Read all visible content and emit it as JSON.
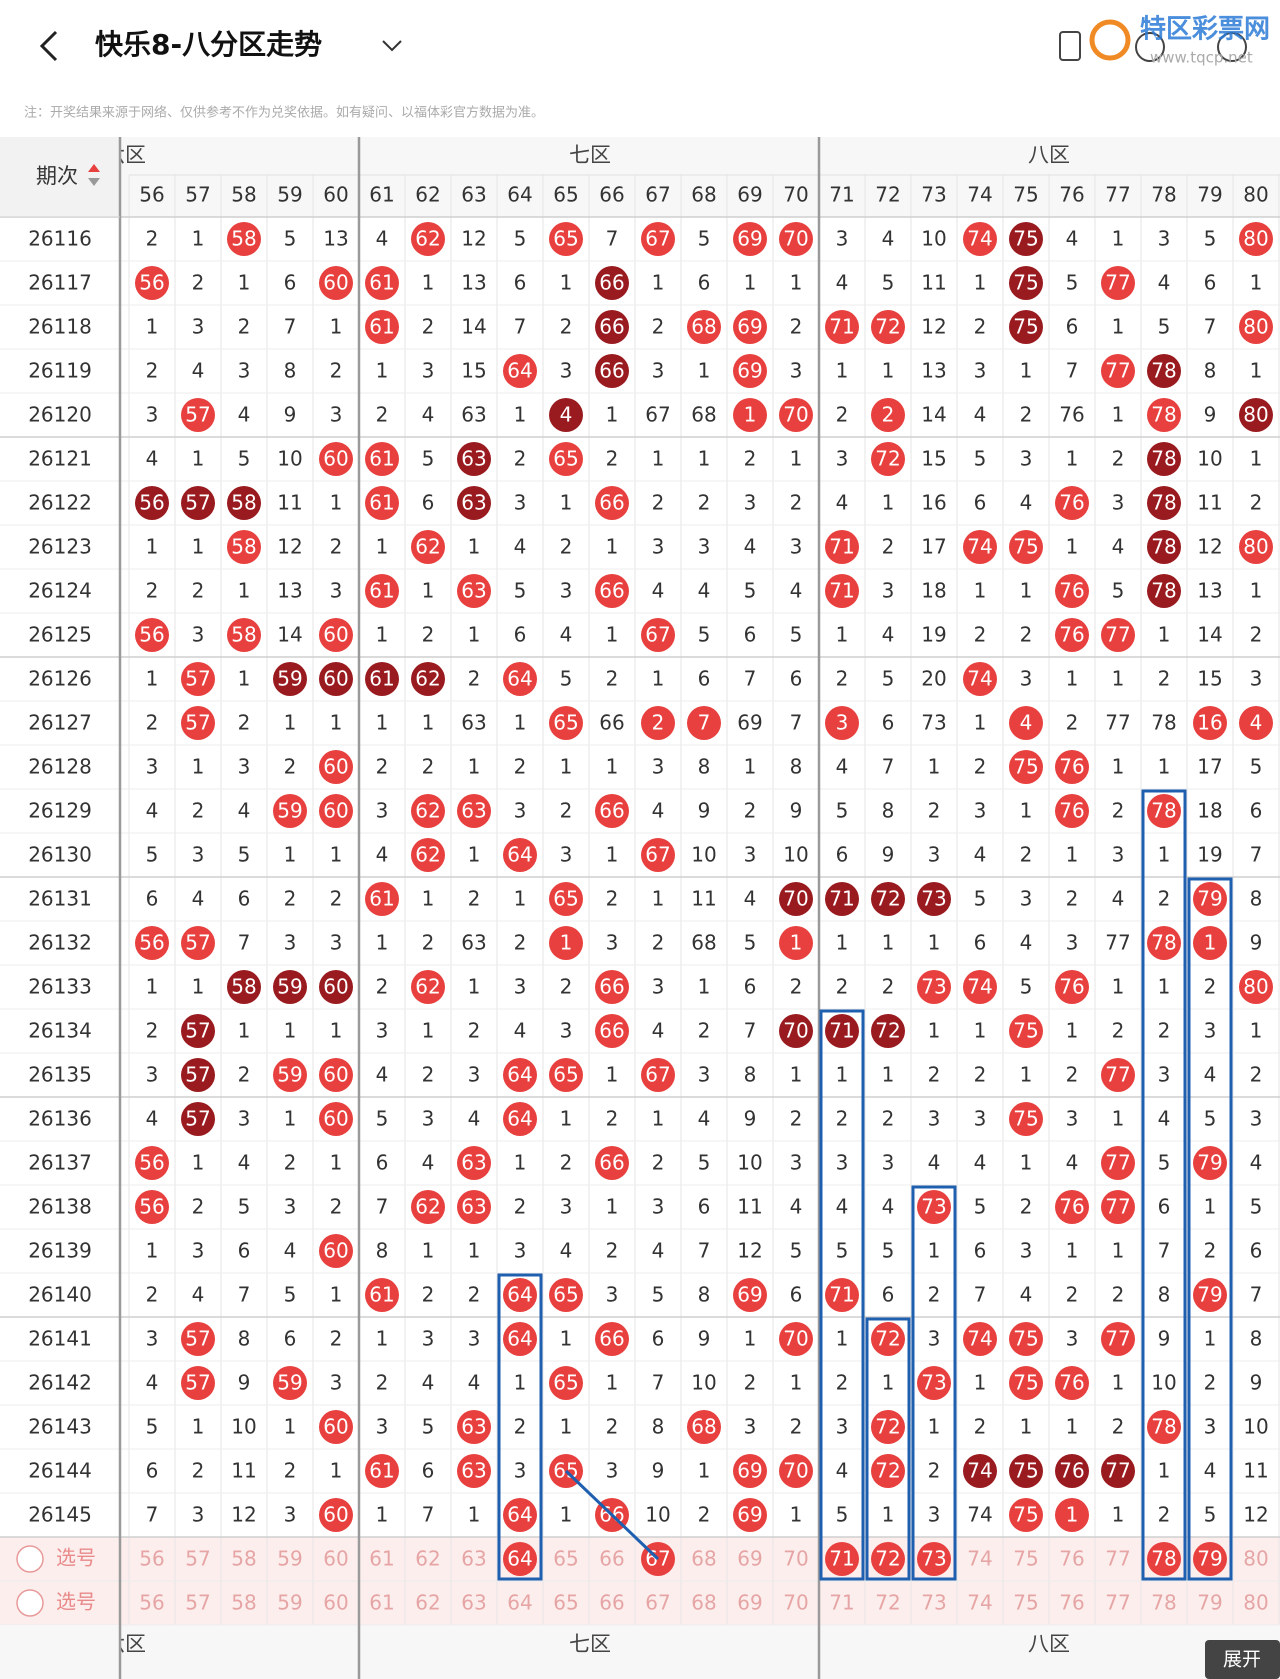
{
  "header": {
    "title": "快乐8-八分区走势",
    "watermark": "特区彩票网",
    "watermark_url": "www.tqcp.net"
  },
  "note": "注：开奖结果来源于网络、仅供参考不作为兑奖依据。如有疑问、以福体彩官方数据为准。",
  "table": {
    "zones": [
      "六区",
      "七区",
      "八区"
    ],
    "issue_header": "期次",
    "columns": [
      56,
      57,
      58,
      59,
      60,
      61,
      62,
      63,
      64,
      65,
      66,
      67,
      68,
      69,
      70,
      71,
      72,
      73,
      74,
      75,
      76,
      77,
      78,
      79,
      80
    ],
    "rows": [
      {
        "issue": "26116",
        "cells": [
          2,
          1,
          58,
          5,
          13,
          4,
          62,
          12,
          5,
          65,
          7,
          67,
          5,
          69,
          70,
          3,
          4,
          10,
          74,
          75,
          4,
          1,
          3,
          5,
          80
        ],
        "marks": "..h...h..h.h.hh...hd....h"
      },
      {
        "issue": "26117",
        "cells": [
          56,
          2,
          1,
          6,
          60,
          61,
          1,
          13,
          6,
          1,
          66,
          1,
          6,
          1,
          1,
          4,
          5,
          11,
          1,
          75,
          5,
          77,
          4,
          6,
          1
        ],
        "marks": "h...hh....d........d.h..."
      },
      {
        "issue": "26118",
        "cells": [
          1,
          3,
          2,
          7,
          1,
          61,
          2,
          14,
          7,
          2,
          66,
          2,
          68,
          69,
          2,
          71,
          72,
          12,
          2,
          75,
          6,
          1,
          5,
          7,
          80
        ],
        "marks": ".....h....d.hh.hh..d....h"
      },
      {
        "issue": "26119",
        "cells": [
          2,
          4,
          3,
          8,
          2,
          1,
          3,
          15,
          64,
          3,
          66,
          3,
          1,
          69,
          3,
          1,
          1,
          13,
          3,
          1,
          7,
          77,
          78,
          8,
          1
        ],
        "marks": "........h.d..h.......hd.."
      },
      {
        "issue": "26120",
        "cells": [
          3,
          57,
          4,
          9,
          3,
          2,
          4,
          63,
          1,
          4,
          1,
          67,
          68,
          1,
          70,
          2,
          2,
          14,
          4,
          2,
          76,
          1,
          78,
          9,
          80
        ],
        "marks": ".h.......d...hh.h.....h.d.h"
      },
      {
        "issue": "26121",
        "cells": [
          4,
          1,
          5,
          10,
          60,
          61,
          5,
          63,
          2,
          65,
          2,
          1,
          1,
          2,
          1,
          3,
          72,
          15,
          5,
          3,
          1,
          2,
          78,
          10,
          1
        ],
        "marks": "....hh.d.h......h.....d.."
      },
      {
        "issue": "26122",
        "cells": [
          56,
          57,
          58,
          11,
          1,
          61,
          6,
          63,
          3,
          1,
          66,
          2,
          2,
          3,
          2,
          4,
          1,
          16,
          6,
          4,
          76,
          3,
          78,
          11,
          2
        ],
        "marks": "ddd..h.d..h.........h.d.."
      },
      {
        "issue": "26123",
        "cells": [
          1,
          1,
          58,
          12,
          2,
          1,
          62,
          1,
          4,
          2,
          1,
          3,
          3,
          4,
          3,
          71,
          2,
          17,
          74,
          75,
          1,
          4,
          78,
          12,
          80
        ],
        "marks": "..h...h........h..hh..d.h"
      },
      {
        "issue": "26124",
        "cells": [
          2,
          2,
          1,
          13,
          3,
          61,
          1,
          63,
          5,
          3,
          66,
          4,
          4,
          5,
          4,
          71,
          3,
          18,
          1,
          1,
          76,
          5,
          78,
          13,
          1
        ],
        "marks": ".....h.h..h....h....h.d.."
      },
      {
        "issue": "26125",
        "cells": [
          56,
          3,
          58,
          14,
          60,
          1,
          2,
          1,
          6,
          4,
          1,
          67,
          5,
          6,
          5,
          1,
          4,
          19,
          2,
          2,
          76,
          77,
          1,
          14,
          2
        ],
        "marks": "h.h.h......h........hh..."
      },
      {
        "issue": "26126",
        "cells": [
          1,
          57,
          1,
          59,
          60,
          61,
          62,
          2,
          64,
          5,
          2,
          1,
          6,
          7,
          6,
          2,
          5,
          20,
          74,
          3,
          1,
          1,
          2,
          15,
          3
        ],
        "marks": ".h.dddd.h.........h......"
      },
      {
        "issue": "26127",
        "cells": [
          2,
          57,
          2,
          1,
          1,
          1,
          1,
          63,
          1,
          65,
          66,
          2,
          7,
          69,
          7,
          3,
          6,
          73,
          1,
          4,
          2,
          77,
          78,
          16,
          4
        ],
        "marks": ".h.......h.hh..h...h...hh.."
      },
      {
        "issue": "26128",
        "cells": [
          3,
          1,
          3,
          2,
          60,
          2,
          2,
          1,
          2,
          1,
          1,
          3,
          8,
          1,
          8,
          4,
          7,
          1,
          2,
          75,
          76,
          1,
          1,
          17,
          5
        ],
        "marks": "....h..............hh...."
      },
      {
        "issue": "26129",
        "cells": [
          4,
          2,
          4,
          59,
          60,
          3,
          62,
          63,
          3,
          2,
          66,
          4,
          9,
          2,
          9,
          5,
          8,
          2,
          3,
          1,
          76,
          2,
          78,
          18,
          6
        ],
        "marks": "...hh.hh..h.........h.h.."
      },
      {
        "issue": "26130",
        "cells": [
          5,
          3,
          5,
          1,
          1,
          4,
          62,
          1,
          64,
          3,
          1,
          67,
          10,
          3,
          10,
          6,
          9,
          3,
          4,
          2,
          1,
          3,
          1,
          19,
          7
        ],
        "marks": "......h.h..h............."
      },
      {
        "issue": "26131",
        "cells": [
          6,
          4,
          6,
          2,
          2,
          61,
          1,
          2,
          1,
          65,
          2,
          1,
          11,
          4,
          70,
          71,
          72,
          73,
          5,
          3,
          2,
          4,
          2,
          79,
          8
        ],
        "marks": ".....h...h....dddd.....h."
      },
      {
        "issue": "26132",
        "cells": [
          56,
          57,
          7,
          3,
          3,
          1,
          2,
          63,
          2,
          1,
          3,
          2,
          68,
          5,
          1,
          1,
          1,
          1,
          6,
          4,
          3,
          77,
          78,
          1,
          9
        ],
        "marks": "hh.......h....h.......hh.."
      },
      {
        "issue": "26133",
        "cells": [
          1,
          1,
          58,
          59,
          60,
          2,
          62,
          1,
          3,
          2,
          66,
          3,
          1,
          6,
          2,
          2,
          2,
          73,
          74,
          5,
          76,
          1,
          1,
          2,
          80
        ],
        "marks": "..ddd.h...h......hh.h...h"
      },
      {
        "issue": "26134",
        "cells": [
          2,
          57,
          1,
          1,
          1,
          3,
          1,
          2,
          4,
          3,
          66,
          4,
          2,
          7,
          70,
          71,
          72,
          1,
          1,
          75,
          1,
          2,
          2,
          3,
          1
        ],
        "marks": ".d........h...ddd..h....."
      },
      {
        "issue": "26135",
        "cells": [
          3,
          57,
          2,
          59,
          60,
          4,
          2,
          3,
          64,
          65,
          1,
          67,
          3,
          8,
          1,
          1,
          1,
          2,
          2,
          1,
          2,
          77,
          3,
          4,
          2
        ],
        "marks": ".d.hh...hh.h.........h..."
      },
      {
        "issue": "26136",
        "cells": [
          4,
          57,
          3,
          1,
          60,
          5,
          3,
          4,
          64,
          1,
          2,
          1,
          4,
          9,
          2,
          2,
          2,
          3,
          3,
          75,
          3,
          1,
          4,
          5,
          3
        ],
        "marks": ".d..h...h..........h....."
      },
      {
        "issue": "26137",
        "cells": [
          56,
          1,
          4,
          2,
          1,
          6,
          4,
          63,
          1,
          2,
          66,
          2,
          5,
          10,
          3,
          3,
          3,
          4,
          4,
          1,
          4,
          77,
          5,
          79,
          4
        ],
        "marks": "h......h..h..........h.h."
      },
      {
        "issue": "26138",
        "cells": [
          56,
          2,
          5,
          3,
          2,
          7,
          62,
          63,
          2,
          3,
          1,
          3,
          6,
          11,
          4,
          4,
          4,
          73,
          5,
          2,
          76,
          77,
          6,
          1,
          5
        ],
        "marks": "h.....hh.........h..hh..."
      },
      {
        "issue": "26139",
        "cells": [
          1,
          3,
          6,
          4,
          60,
          8,
          1,
          1,
          3,
          4,
          2,
          4,
          7,
          12,
          5,
          5,
          5,
          1,
          6,
          3,
          1,
          1,
          7,
          2,
          6
        ],
        "marks": "....h...................."
      },
      {
        "issue": "26140",
        "cells": [
          2,
          4,
          7,
          5,
          1,
          61,
          2,
          2,
          64,
          65,
          3,
          5,
          8,
          69,
          6,
          71,
          6,
          2,
          7,
          4,
          2,
          2,
          8,
          79,
          7
        ],
        "marks": ".....h..hh...h.h.......h."
      },
      {
        "issue": "26141",
        "cells": [
          3,
          57,
          8,
          6,
          2,
          1,
          3,
          3,
          64,
          1,
          66,
          6,
          9,
          1,
          70,
          1,
          72,
          3,
          74,
          75,
          3,
          77,
          9,
          1,
          8
        ],
        "marks": ".h......h.h...h.h.hh.h..."
      },
      {
        "issue": "26142",
        "cells": [
          4,
          57,
          9,
          59,
          3,
          2,
          4,
          4,
          1,
          65,
          1,
          7,
          10,
          2,
          1,
          2,
          1,
          73,
          1,
          75,
          76,
          1,
          10,
          2,
          9
        ],
        "marks": ".h.h.....h.......h.hh...."
      },
      {
        "issue": "26143",
        "cells": [
          5,
          1,
          10,
          1,
          60,
          3,
          5,
          63,
          2,
          1,
          2,
          8,
          68,
          3,
          2,
          3,
          72,
          1,
          2,
          1,
          1,
          2,
          78,
          3,
          10
        ],
        "marks": "....h..h....h...h.....h.."
      },
      {
        "issue": "26144",
        "cells": [
          6,
          2,
          11,
          2,
          1,
          61,
          6,
          63,
          3,
          65,
          3,
          9,
          1,
          69,
          70,
          4,
          72,
          2,
          74,
          75,
          76,
          77,
          1,
          4,
          11
        ],
        "marks": ".....h.h.h...hh.h.dddd..."
      },
      {
        "issue": "26145",
        "cells": [
          7,
          3,
          12,
          3,
          60,
          1,
          7,
          1,
          64,
          1,
          66,
          10,
          2,
          69,
          1,
          5,
          1,
          3,
          74,
          75,
          1,
          1,
          2,
          5,
          12
        ],
        "marks": "....h...h.h..h.....hh....."
      }
    ],
    "pick_label": "选号",
    "selected": [
      64,
      67,
      71,
      72,
      73,
      78,
      79
    ]
  },
  "expand": "展开"
}
